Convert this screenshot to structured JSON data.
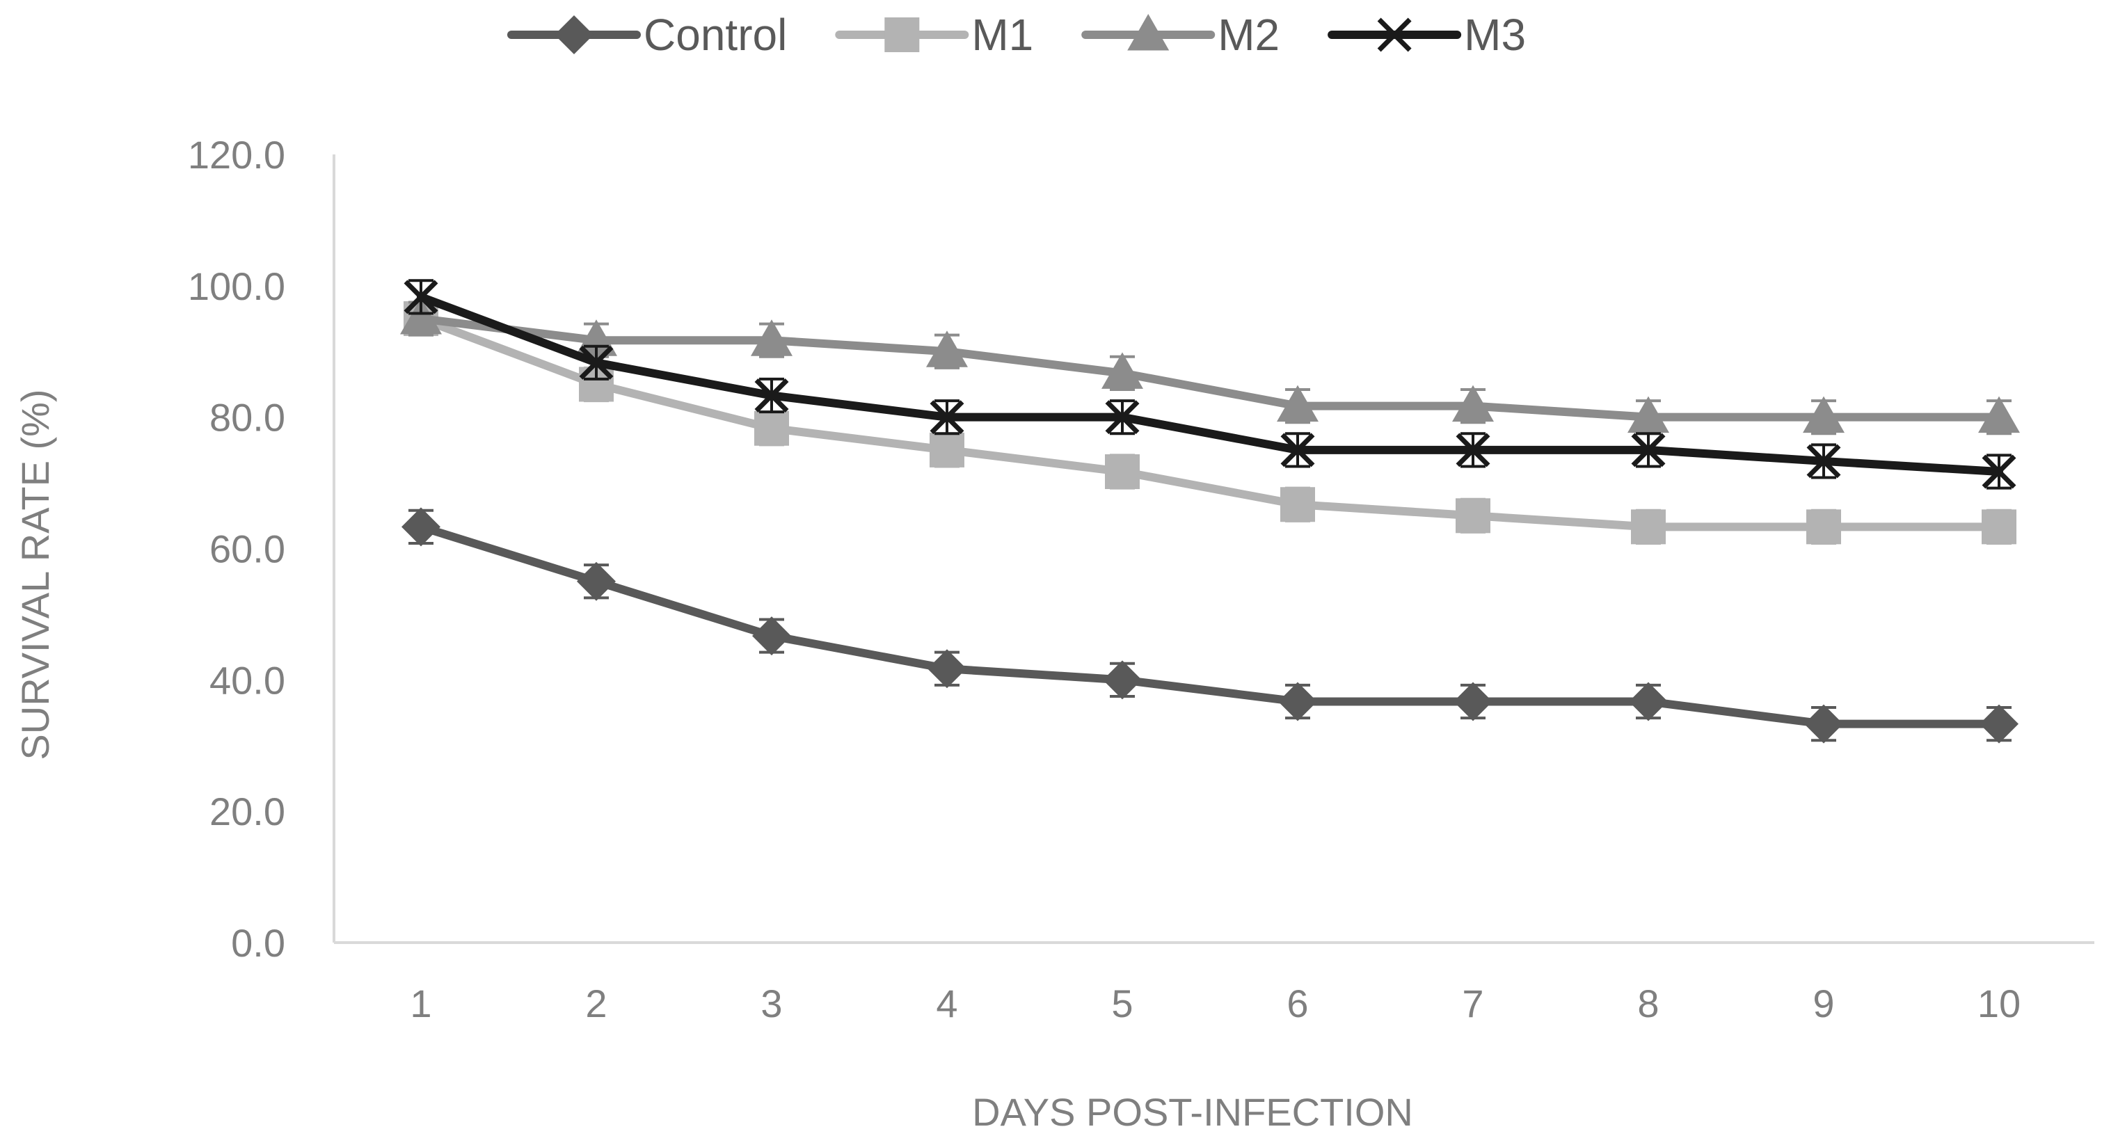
{
  "chart_data": {
    "type": "line",
    "title": "",
    "xlabel": "DAYS POST-INFECTION",
    "ylabel": "SURVIVAL RATE (%)",
    "x": [
      1,
      2,
      3,
      4,
      5,
      6,
      7,
      8,
      9,
      10
    ],
    "x_tick_labels": [
      "1",
      "2",
      "3",
      "4",
      "5",
      "6",
      "7",
      "8",
      "9",
      "10"
    ],
    "ylim": [
      0,
      120
    ],
    "y_ticks": [
      0,
      20,
      40,
      60,
      80,
      100,
      120
    ],
    "y_tick_labels": [
      "0.0",
      "20.0",
      "40.0",
      "60.0",
      "80.0",
      "100.0",
      "120.0"
    ],
    "grid": false,
    "legend_position": "top-center",
    "error_bar": 2.5,
    "series": [
      {
        "name": "Control",
        "marker": "diamond",
        "color": "#595959",
        "values": [
          63.3,
          55.0,
          46.7,
          41.7,
          40.0,
          36.7,
          36.7,
          36.7,
          33.3,
          33.3
        ]
      },
      {
        "name": "M1",
        "marker": "square",
        "color": "#b3b3b3",
        "values": [
          95.0,
          85.0,
          78.3,
          75.0,
          71.7,
          66.7,
          65.0,
          63.3,
          63.3,
          63.3
        ]
      },
      {
        "name": "M2",
        "marker": "triangle",
        "color": "#8c8c8c",
        "values": [
          95.0,
          91.7,
          91.7,
          90.0,
          86.7,
          81.7,
          81.7,
          80.0,
          80.0,
          80.0
        ]
      },
      {
        "name": "M3",
        "marker": "x",
        "color": "#1a1a1a",
        "values": [
          98.3,
          88.3,
          83.3,
          80.0,
          80.0,
          75.0,
          75.0,
          75.0,
          73.3,
          71.7
        ]
      }
    ]
  }
}
